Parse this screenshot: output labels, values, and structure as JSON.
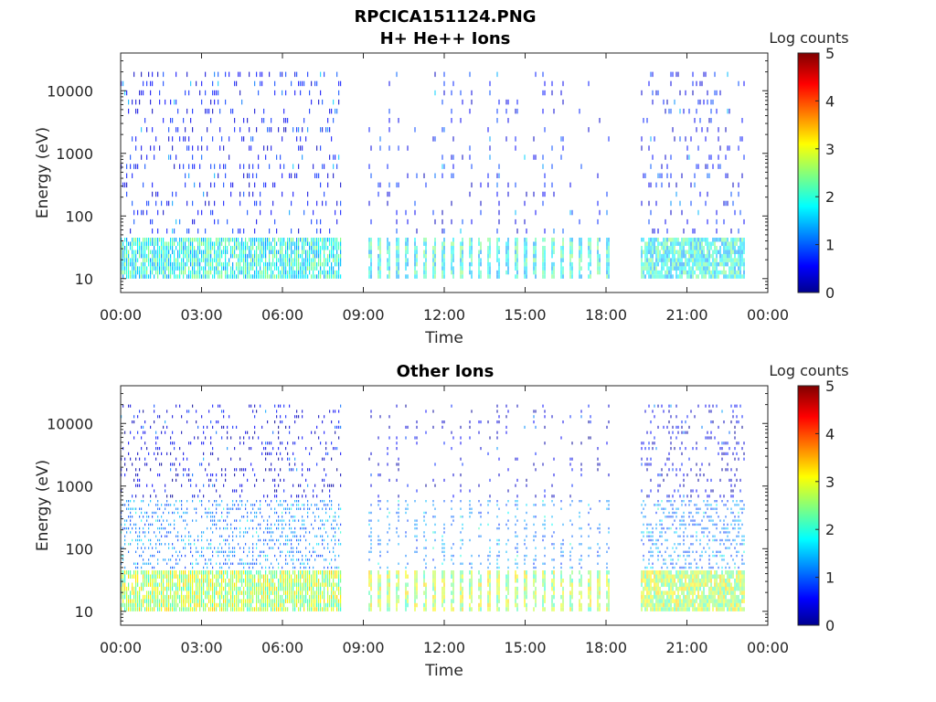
{
  "figure": {
    "title": "RPCICA151124.PNG"
  },
  "colors": {
    "low": "#00008f",
    "mid": "#00ffff",
    "high": "#800000",
    "axis": "#262626",
    "background": "#ffffff"
  },
  "chart_data": [
    {
      "type": "heatmap",
      "title": "H+ He++ Ions",
      "xlabel": "Time",
      "ylabel": "Energy (eV)",
      "x_ticks": [
        "00:00",
        "03:00",
        "06:00",
        "09:00",
        "12:00",
        "15:00",
        "18:00",
        "21:00",
        "00:00"
      ],
      "x_tick_hours": [
        0,
        3,
        6,
        9,
        12,
        15,
        18,
        21,
        24
      ],
      "xlim_hours": [
        0,
        24
      ],
      "y_scale": "log",
      "ylim": [
        6,
        40000
      ],
      "y_ticks": [
        "10",
        "100",
        "1000",
        "10000"
      ],
      "y_tick_values": [
        10,
        100,
        1000,
        10000
      ],
      "colorbar": {
        "label": "Log counts",
        "range": [
          0,
          5
        ],
        "ticks": [
          "0",
          "1",
          "2",
          "3",
          "4",
          "5"
        ],
        "colormap": "jet"
      },
      "data_intervals_hours": [
        [
          0.0,
          8.15
        ],
        [
          9.2,
          18.1
        ],
        [
          19.3,
          23.1
        ]
      ],
      "intermittent_interval_hours": [
        9.2,
        18.1
      ],
      "bands": [
        {
          "e_min": 10,
          "e_max": 45,
          "log_counts": 1.8,
          "description": "low energy bright band"
        },
        {
          "e_min": 45,
          "e_max": 20000,
          "log_counts": 0.4,
          "description": "sparse high energy"
        }
      ]
    },
    {
      "type": "heatmap",
      "title": "Other Ions",
      "xlabel": "Time",
      "ylabel": "Energy (eV)",
      "x_ticks": [
        "00:00",
        "03:00",
        "06:00",
        "09:00",
        "12:00",
        "15:00",
        "18:00",
        "21:00",
        "00:00"
      ],
      "x_tick_hours": [
        0,
        3,
        6,
        9,
        12,
        15,
        18,
        21,
        24
      ],
      "xlim_hours": [
        0,
        24
      ],
      "y_scale": "log",
      "ylim": [
        6,
        40000
      ],
      "y_ticks": [
        "10",
        "100",
        "1000",
        "10000"
      ],
      "y_tick_values": [
        10,
        100,
        1000,
        10000
      ],
      "colorbar": {
        "label": "Log counts",
        "range": [
          0,
          5
        ],
        "ticks": [
          "0",
          "1",
          "2",
          "3",
          "4",
          "5"
        ],
        "colormap": "jet"
      },
      "data_intervals_hours": [
        [
          0.0,
          8.15
        ],
        [
          9.2,
          18.1
        ],
        [
          19.3,
          23.1
        ]
      ],
      "intermittent_interval_hours": [
        9.2,
        18.1
      ],
      "bands": [
        {
          "e_min": 10,
          "e_max": 45,
          "log_counts": 2.6,
          "description": "low energy bright band"
        },
        {
          "e_min": 45,
          "e_max": 600,
          "log_counts": 1.0,
          "description": "mid energy"
        },
        {
          "e_min": 600,
          "e_max": 20000,
          "log_counts": 0.2,
          "description": "sparse high energy"
        }
      ]
    }
  ]
}
